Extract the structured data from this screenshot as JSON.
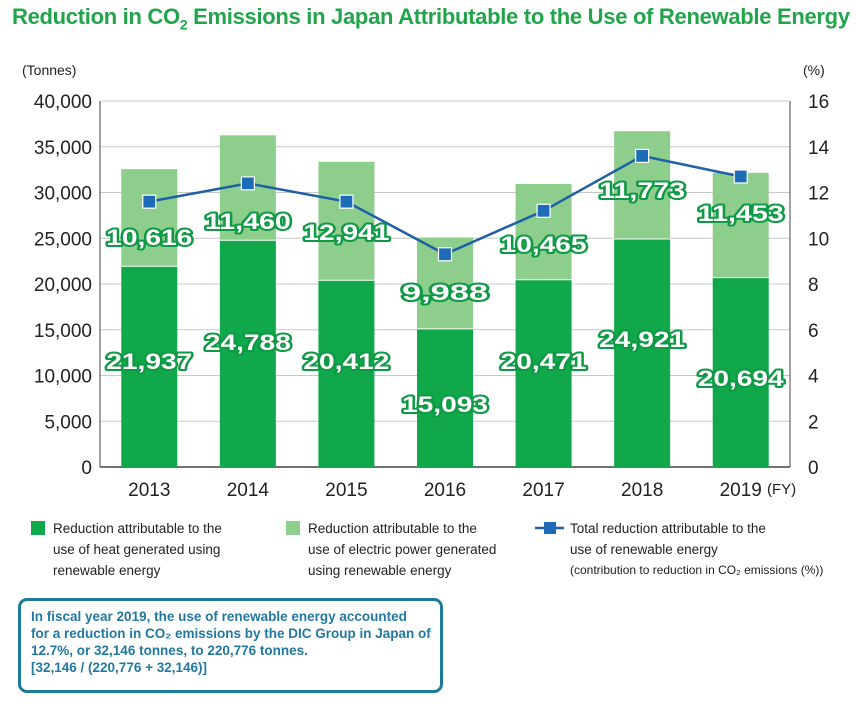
{
  "title_main": "Reduction in CO",
  "title_sub": "2",
  "title_rest": " Emissions in Japan Attributable to the Use of Renewable Energy",
  "colors": {
    "heat": "#10a84a",
    "electric": "#8dce8c",
    "line": "#1e5fa8",
    "marker": "#1e6bb8",
    "title": "#22a44a",
    "note": "#2179a1"
  },
  "chart_data": {
    "type": "bar",
    "stacked": true,
    "categories": [
      "2013",
      "2014",
      "2015",
      "2016",
      "2017",
      "2018",
      "2019"
    ],
    "x_unit": "(FY)",
    "left_axis": {
      "unit": "(Tonnes)",
      "range": [
        0,
        40000
      ],
      "ticks": [
        "0",
        "5,000",
        "10,000",
        "15,000",
        "20,000",
        "25,000",
        "30,000",
        "35,000",
        "40,000"
      ]
    },
    "right_axis": {
      "unit": "(%)",
      "range": [
        0,
        16
      ],
      "ticks": [
        "0",
        "2",
        "4",
        "6",
        "8",
        "10",
        "12",
        "14",
        "16"
      ]
    },
    "grid": true,
    "series": [
      {
        "name": "Reduction attributable to the use of heat generated using renewable energy",
        "type": "bar",
        "axis": "left",
        "values": [
          21937,
          24788,
          20412,
          15093,
          20471,
          24921,
          20694
        ],
        "labels": [
          "21,937",
          "24,788",
          "20,412",
          "15,093",
          "20,471",
          "24,921",
          "20,694"
        ]
      },
      {
        "name": "Reduction attributable to the use of electric power generated using renewable energy",
        "type": "bar",
        "axis": "left",
        "values": [
          10616,
          11460,
          12941,
          9988,
          10465,
          11773,
          11453
        ],
        "labels": [
          "10,616",
          "11,460",
          "12,941",
          "9,988",
          "10,465",
          "11,773",
          "11,453"
        ]
      },
      {
        "name": "Total reduction attributable to the use of renewable energy (contribution to reduction in CO2 emissions (%))",
        "type": "line",
        "axis": "right",
        "values": [
          11.6,
          12.4,
          11.6,
          9.3,
          11.2,
          13.6,
          12.7
        ]
      }
    ]
  },
  "legend": [
    {
      "lines": [
        "Reduction attributable to the",
        "use of heat generated using",
        "renewable energy"
      ]
    },
    {
      "lines": [
        "Reduction attributable to the",
        "use of electric power generated",
        "using renewable energy"
      ]
    },
    {
      "lines": [
        "Total reduction attributable to the",
        "use of renewable energy"
      ],
      "small": "(contribution to reduction in CO₂ emissions (%))"
    }
  ],
  "note": {
    "lines": [
      "In fiscal year 2019, the use of renewable energy accounted",
      "for a reduction in CO₂ emissions by the DIC Group in Japan of",
      "12.7%, or 32,146 tonnes, to 220,776 tonnes.",
      "[32,146 / (220,776 + 32,146)]"
    ]
  }
}
